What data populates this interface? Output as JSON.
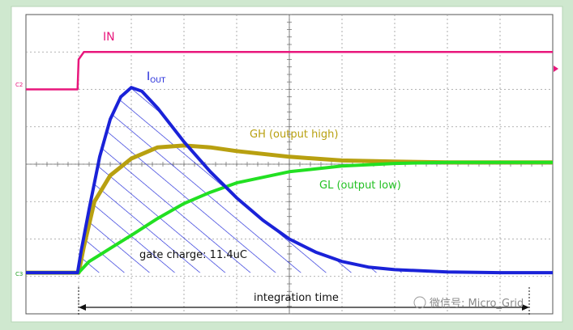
{
  "chart_data": {
    "type": "line",
    "xlim": [
      0,
      10
    ],
    "ylim": [
      -4,
      4
    ],
    "grid": true,
    "x_major_divisions": 10,
    "y_major_divisions": 8,
    "labels": {
      "in": "IN",
      "iout_main": "I",
      "iout_sub": "OUT",
      "gh": "GH (output high)",
      "gl": "GL (output low)",
      "gate_charge": "gate charge: 11.4uC",
      "integration_time": "integration time",
      "ch_marker_top": "C2",
      "ch_marker_bottom": "C3",
      "watermark": "微信号: Micro_Grid"
    },
    "integration_window": [
      1.0,
      9.7
    ],
    "series": [
      {
        "id": "in",
        "color": "#e8177c",
        "points": [
          [
            0.0,
            2.0
          ],
          [
            0.98,
            2.0
          ],
          [
            1.0,
            2.8
          ],
          [
            1.1,
            3.0
          ],
          [
            10.0,
            3.0
          ]
        ]
      },
      {
        "id": "iout",
        "color": "#1a22d8",
        "points": [
          [
            0.0,
            -2.9
          ],
          [
            0.98,
            -2.9
          ],
          [
            1.05,
            -2.3
          ],
          [
            1.2,
            -1.2
          ],
          [
            1.4,
            0.2
          ],
          [
            1.6,
            1.2
          ],
          [
            1.8,
            1.8
          ],
          [
            2.0,
            2.05
          ],
          [
            2.2,
            1.95
          ],
          [
            2.5,
            1.5
          ],
          [
            3.0,
            0.6
          ],
          [
            3.5,
            -0.2
          ],
          [
            4.0,
            -0.9
          ],
          [
            4.5,
            -1.5
          ],
          [
            5.0,
            -2.0
          ],
          [
            5.5,
            -2.35
          ],
          [
            6.0,
            -2.6
          ],
          [
            6.5,
            -2.75
          ],
          [
            7.0,
            -2.82
          ],
          [
            8.0,
            -2.88
          ],
          [
            9.0,
            -2.9
          ],
          [
            10.0,
            -2.9
          ]
        ]
      },
      {
        "id": "gh",
        "color": "#b8a010",
        "points": [
          [
            0.0,
            -2.9
          ],
          [
            1.0,
            -2.9
          ],
          [
            1.1,
            -2.2
          ],
          [
            1.3,
            -1.0
          ],
          [
            1.6,
            -0.3
          ],
          [
            2.0,
            0.15
          ],
          [
            2.5,
            0.45
          ],
          [
            3.0,
            0.5
          ],
          [
            3.5,
            0.45
          ],
          [
            4.0,
            0.35
          ],
          [
            5.0,
            0.2
          ],
          [
            6.0,
            0.1
          ],
          [
            7.0,
            0.07
          ],
          [
            8.0,
            0.05
          ],
          [
            10.0,
            0.05
          ]
        ]
      },
      {
        "id": "gl",
        "color": "#22e022",
        "points": [
          [
            0.0,
            -2.9
          ],
          [
            1.0,
            -2.9
          ],
          [
            1.2,
            -2.6
          ],
          [
            1.6,
            -2.25
          ],
          [
            2.0,
            -1.9
          ],
          [
            2.5,
            -1.45
          ],
          [
            3.0,
            -1.05
          ],
          [
            3.5,
            -0.75
          ],
          [
            4.0,
            -0.5
          ],
          [
            5.0,
            -0.2
          ],
          [
            6.0,
            -0.05
          ],
          [
            7.0,
            0.02
          ],
          [
            8.0,
            0.05
          ],
          [
            10.0,
            0.05
          ]
        ]
      }
    ]
  }
}
